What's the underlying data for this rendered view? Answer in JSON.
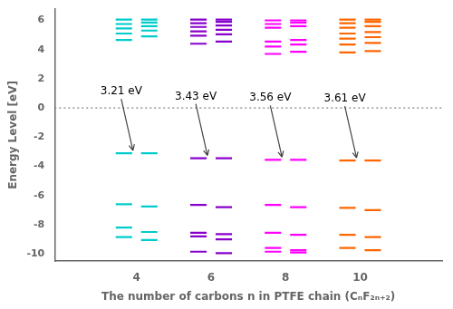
{
  "chart_data": {
    "type": "energy_levels",
    "x_label": "The number of carbons n in PTFE chain (CₙF₂ₙ₊₂)",
    "y_label": "Energy Level [eV]",
    "xlim": [
      1.8,
      12.2
    ],
    "xticks": [
      4,
      6,
      8,
      10
    ],
    "ylim": [
      -10.5,
      6.8
    ],
    "yticks": [
      -10,
      -8,
      -6,
      -4,
      -2,
      0,
      2,
      4,
      6
    ],
    "grid": false,
    "levels": [
      {
        "x": 4,
        "color": "#00CCCC",
        "left": [
          6.05,
          5.75,
          5.45,
          5.1,
          4.65,
          -3.1,
          -6.6,
          -8.2,
          -8.85
        ],
        "right": [
          6.05,
          5.85,
          5.6,
          5.3,
          4.9,
          -3.1,
          -6.75,
          -8.5,
          -9.05
        ]
      },
      {
        "x": 6,
        "color": "#8800CC",
        "left": [
          6.05,
          5.8,
          5.55,
          5.25,
          4.95,
          4.4,
          -3.45,
          -6.65,
          -8.55,
          -8.8,
          -9.85
        ],
        "right": [
          6.05,
          5.9,
          5.65,
          5.35,
          5.05,
          4.55,
          -3.45,
          -6.8,
          -8.65,
          -9.0,
          -9.95
        ]
      },
      {
        "x": 8,
        "color": "#FF00FF",
        "left": [
          6.0,
          5.75,
          5.5,
          4.55,
          4.2,
          3.7,
          -3.55,
          -6.65,
          -8.55,
          -9.6,
          -9.85
        ],
        "right": [
          6.0,
          5.85,
          5.6,
          4.65,
          4.35,
          3.85,
          -3.55,
          -6.8,
          -8.7,
          -9.75,
          -9.9
        ]
      },
      {
        "x": 10,
        "color": "#FF6600",
        "left": [
          6.05,
          5.8,
          5.5,
          5.1,
          4.75,
          4.35,
          3.8,
          -3.6,
          -6.85,
          -8.7,
          -9.6
        ],
        "right": [
          6.05,
          5.9,
          5.6,
          5.2,
          4.85,
          4.45,
          3.9,
          -3.6,
          -7.0,
          -8.85,
          -9.75
        ]
      }
    ],
    "reference_lines": [
      {
        "y": 0,
        "color": "#808080",
        "line_style": "dotted"
      }
    ],
    "annotations": [
      {
        "text": "3.21 eV",
        "x": 4,
        "y": -3.1
      },
      {
        "text": "3.43 eV",
        "x": 6,
        "y": -3.45
      },
      {
        "text": "3.56 eV",
        "x": 8,
        "y": -3.55
      },
      {
        "text": "3.61 eV",
        "x": 10,
        "y": -3.6
      }
    ]
  }
}
